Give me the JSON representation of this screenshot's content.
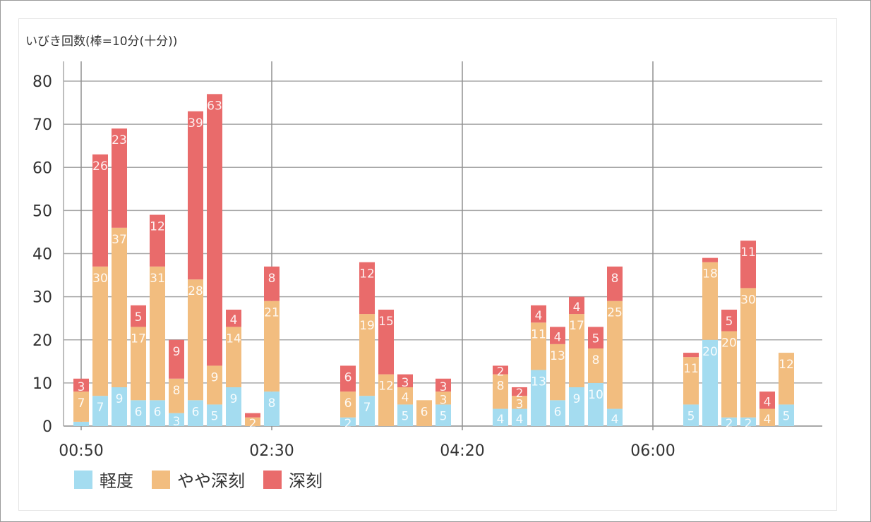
{
  "chart_data": {
    "type": "bar",
    "stacked": true,
    "title": "いびき回数(棒=10分(十分))",
    "xlabel": "",
    "ylabel": "",
    "ylim": [
      0,
      80
    ],
    "yticks": [
      0,
      10,
      20,
      30,
      40,
      50,
      60,
      70,
      80
    ],
    "xticks": [
      {
        "slot": 0,
        "label": "00:50"
      },
      {
        "slot": 10,
        "label": "02:30"
      },
      {
        "slot": 20,
        "label": "04:20"
      },
      {
        "slot": 30,
        "label": "06:00"
      }
    ],
    "grid": true,
    "legend_position": "bottom-left",
    "x": [
      0,
      1,
      2,
      3,
      4,
      5,
      6,
      7,
      8,
      9,
      10,
      14,
      15,
      16,
      17,
      18,
      19,
      22,
      23,
      24,
      25,
      26,
      27,
      28,
      32,
      33,
      34,
      35,
      36,
      37
    ],
    "series": [
      {
        "name": "軽度",
        "color": "#a4dcf0",
        "values": [
          1,
          7,
          9,
          6,
          6,
          3,
          6,
          5,
          9,
          0,
          8,
          2,
          7,
          0,
          5,
          0,
          5,
          4,
          4,
          13,
          6,
          9,
          10,
          4,
          5,
          20,
          2,
          2,
          0,
          5
        ]
      },
      {
        "name": "やや深刻",
        "color": "#f2bd7f",
        "values": [
          7,
          30,
          37,
          17,
          31,
          8,
          28,
          9,
          14,
          2,
          21,
          6,
          19,
          12,
          4,
          6,
          3,
          8,
          3,
          11,
          13,
          17,
          8,
          25,
          11,
          18,
          20,
          30,
          4,
          12
        ]
      },
      {
        "name": "深刻",
        "color": "#e96b6b",
        "values": [
          3,
          26,
          23,
          5,
          12,
          9,
          39,
          63,
          4,
          1,
          8,
          6,
          12,
          15,
          3,
          0,
          3,
          2,
          2,
          4,
          4,
          4,
          5,
          8,
          1,
          1,
          5,
          11,
          4,
          0
        ]
      }
    ]
  }
}
